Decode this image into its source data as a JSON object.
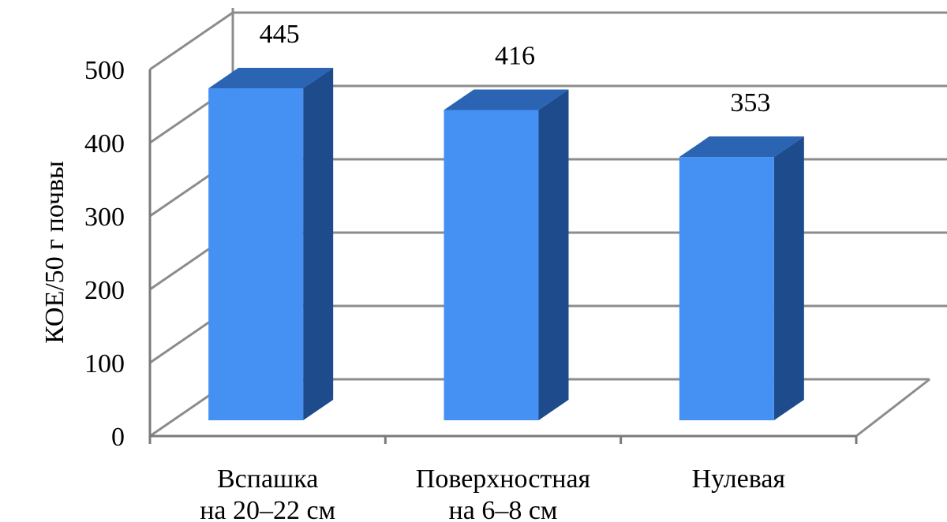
{
  "chart_data": {
    "type": "bar",
    "style": "3d-column",
    "categories": [
      [
        "Вспашка",
        "на 20–22 см"
      ],
      [
        "Поверхностная",
        "на 6–8 см"
      ],
      [
        "Нулевая"
      ]
    ],
    "values": [
      445,
      416,
      353
    ],
    "data_labels": [
      "445",
      "416",
      "353"
    ],
    "ylabel": "КОЕ/50 г почвы",
    "ylim": [
      0,
      500
    ],
    "yticks": [
      "0",
      "100",
      "200",
      "300",
      "400",
      "500"
    ],
    "grid": true,
    "legend": "none",
    "colors": {
      "bar_front": "#4590f3",
      "bar_top": "#2a64b2",
      "bar_side": "#1d4b8c",
      "grid": "#8c8c8c",
      "axis": "#7a7a7a"
    }
  }
}
